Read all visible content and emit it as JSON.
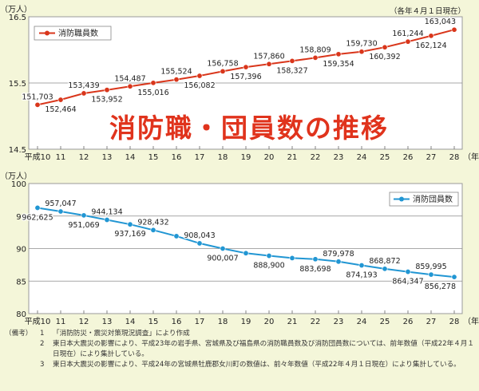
{
  "chart_data": [
    {
      "type": "line",
      "title": "消防職・団員数の推移",
      "as_of": "（各年４月１日現在）",
      "unit_label": "（万人）",
      "x_axis_unit": "（年）",
      "legend": "消防職員数",
      "ylim": [
        14.5,
        16.5
      ],
      "y_ticks": [
        "14.5",
        "15.5",
        "16.5"
      ],
      "categories": [
        "平成10",
        "11",
        "12",
        "13",
        "14",
        "15",
        "16",
        "17",
        "18",
        "19",
        "20",
        "21",
        "22",
        "23",
        "24",
        "25",
        "26",
        "27",
        "28"
      ],
      "values": [
        151703,
        152464,
        153439,
        153952,
        154487,
        155016,
        155524,
        156082,
        156758,
        157396,
        157860,
        158327,
        158809,
        159354,
        159730,
        160392,
        161244,
        162124,
        163043
      ],
      "value_labels": [
        "151,703",
        "152,464",
        "153,439",
        "153,952",
        "154,487",
        "155,016",
        "155,524",
        "156,082",
        "156,758",
        "157,396",
        "157,860",
        "158,327",
        "158,809",
        "159,354",
        "159,730",
        "160,392",
        "161,244",
        "162,124",
        "163,043"
      ],
      "label_positions": [
        "above",
        "below",
        "above",
        "below",
        "above",
        "below",
        "above",
        "below",
        "above",
        "below",
        "above",
        "below",
        "above",
        "below",
        "above",
        "below",
        "above",
        "below",
        "above"
      ],
      "color": "#d9361b"
    },
    {
      "type": "line",
      "unit_label": "（万人）",
      "x_axis_unit": "（年）",
      "legend": "消防団員数",
      "ylim": [
        80,
        100
      ],
      "y_ticks": [
        "80",
        "85",
        "90",
        "95",
        "100"
      ],
      "categories": [
        "平成10",
        "11",
        "12",
        "13",
        "14",
        "15",
        "16",
        "17",
        "18",
        "19",
        "20",
        "21",
        "22",
        "23",
        "24",
        "25",
        "26",
        "27",
        "28"
      ],
      "values": [
        962625,
        957047,
        951069,
        944134,
        937169,
        928432,
        919105,
        908043,
        900007,
        892893,
        888900,
        885394,
        883698,
        879978,
        874193,
        868872,
        864347,
        859995,
        856278
      ],
      "value_labels": [
        "962,625",
        "957,047",
        "951,069",
        "944,134",
        "937,169",
        "928,432",
        "",
        "908,043",
        "900,007",
        "",
        "888,900",
        "",
        "883,698",
        "879,978",
        "874,193",
        "868,872",
        "864,347",
        "859,995",
        "856,278"
      ],
      "label_positions": [
        "below",
        "above",
        "below",
        "above",
        "below",
        "above",
        "none",
        "above",
        "below",
        "none",
        "below",
        "none",
        "below",
        "above",
        "below",
        "above",
        "below",
        "above",
        "below"
      ],
      "color": "#2196d3"
    }
  ],
  "notes": {
    "head": "（備考）",
    "items": [
      {
        "num": "1",
        "text": "「消防防災・震災対策現況調査」により作成"
      },
      {
        "num": "2",
        "text": "東日本大震災の影響により、平成23年の岩手県、宮城県及び福島県の消防職員数及び消防団員数については、前年数値（平成22年４月１日現在）により集計している。"
      },
      {
        "num": "3",
        "text": "東日本大震災の影響により、平成24年の宮城県牡鹿郡女川町の数値は、前々年数値（平成22年４月１日現在）により集計している。"
      }
    ]
  }
}
